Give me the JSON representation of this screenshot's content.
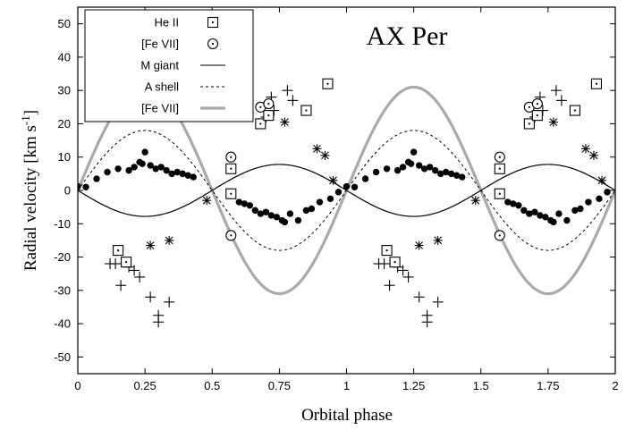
{
  "chart_data": {
    "type": "scatter",
    "title": "AX Per",
    "xlabel": "Orbital phase",
    "ylabel": "Radial velocity [km s",
    "ylabel_sup": "-1",
    "ylabel_close": "]",
    "xlim": [
      0,
      2
    ],
    "ylim": [
      -55,
      55
    ],
    "xticks": [
      0,
      0.25,
      0.5,
      0.75,
      1,
      1.25,
      1.5,
      1.75,
      2
    ],
    "xtick_labels": [
      "0",
      "0.25",
      "0.5",
      "0.75",
      "1",
      "1.25",
      "1.5",
      "1.75",
      "2"
    ],
    "yticks": [
      -50,
      -40,
      -30,
      -20,
      -10,
      0,
      10,
      20,
      30,
      40,
      50
    ],
    "ytick_labels": [
      "-50",
      "-40",
      "-30",
      "-20",
      "-10",
      "0",
      "10",
      "20",
      "30",
      "40",
      "50"
    ],
    "grid": false,
    "legend_position": "top-left",
    "legend": [
      {
        "label": "He II",
        "marker": "boxed-dot"
      },
      {
        "label": "[Fe VII]",
        "marker": "circled-dot"
      },
      {
        "label": "M giant",
        "marker": "solid-line"
      },
      {
        "label": "A shell",
        "marker": "dashed-line"
      },
      {
        "label": "[Fe VII]",
        "marker": "gray-line"
      }
    ],
    "curves": [
      {
        "name": "M giant",
        "style": "solid",
        "color": "#000000",
        "K": -7.8,
        "gamma": 0
      },
      {
        "name": "A shell",
        "style": "dashed",
        "color": "#000000",
        "K": 18,
        "gamma": 0
      },
      {
        "name": "[Fe VII]",
        "style": "thick",
        "color": "#aaaaaa",
        "K": 31,
        "gamma": 0
      }
    ],
    "series": [
      {
        "marker": "filled-circle",
        "points": [
          [
            0.0,
            1.2
          ],
          [
            0.03,
            1.0
          ],
          [
            0.07,
            3.5
          ],
          [
            0.11,
            5.5
          ],
          [
            0.15,
            6.5
          ],
          [
            0.19,
            6.0
          ],
          [
            0.21,
            7.0
          ],
          [
            0.23,
            8.5
          ],
          [
            0.24,
            8.0
          ],
          [
            0.25,
            11.5
          ],
          [
            0.27,
            7.5
          ],
          [
            0.29,
            6.5
          ],
          [
            0.31,
            7.0
          ],
          [
            0.33,
            6.0
          ],
          [
            0.35,
            5.0
          ],
          [
            0.37,
            5.5
          ],
          [
            0.39,
            5.0
          ],
          [
            0.41,
            4.5
          ],
          [
            0.43,
            4.0
          ],
          [
            0.57,
            -0.5
          ],
          [
            0.6,
            -3.5
          ],
          [
            0.62,
            -4.0
          ],
          [
            0.64,
            -4.5
          ],
          [
            0.66,
            -6.0
          ],
          [
            0.68,
            -7.0
          ],
          [
            0.7,
            -6.5
          ],
          [
            0.72,
            -7.5
          ],
          [
            0.74,
            -8.0
          ],
          [
            0.76,
            -9.0
          ],
          [
            0.77,
            -9.5
          ],
          [
            0.79,
            -7.0
          ],
          [
            0.82,
            -9.0
          ],
          [
            0.85,
            -6.0
          ],
          [
            0.87,
            -5.5
          ],
          [
            0.9,
            -3.5
          ],
          [
            0.94,
            -2.5
          ],
          [
            0.97,
            -0.5
          ],
          [
            1.0,
            1.2
          ],
          [
            1.03,
            1.0
          ],
          [
            1.07,
            3.5
          ],
          [
            1.11,
            5.5
          ],
          [
            1.15,
            6.5
          ],
          [
            1.19,
            6.0
          ],
          [
            1.21,
            7.0
          ],
          [
            1.23,
            8.5
          ],
          [
            1.24,
            8.0
          ],
          [
            1.25,
            11.5
          ],
          [
            1.27,
            7.5
          ],
          [
            1.29,
            6.5
          ],
          [
            1.31,
            7.0
          ],
          [
            1.33,
            6.0
          ],
          [
            1.35,
            5.0
          ],
          [
            1.37,
            5.5
          ],
          [
            1.39,
            5.0
          ],
          [
            1.41,
            4.5
          ],
          [
            1.43,
            4.0
          ],
          [
            1.57,
            -0.5
          ],
          [
            1.6,
            -3.5
          ],
          [
            1.62,
            -4.0
          ],
          [
            1.64,
            -4.5
          ],
          [
            1.66,
            -6.0
          ],
          [
            1.68,
            -7.0
          ],
          [
            1.7,
            -6.5
          ],
          [
            1.72,
            -7.5
          ],
          [
            1.74,
            -8.0
          ],
          [
            1.76,
            -9.0
          ],
          [
            1.77,
            -9.5
          ],
          [
            1.79,
            -7.0
          ],
          [
            1.82,
            -9.0
          ],
          [
            1.85,
            -6.0
          ],
          [
            1.87,
            -5.5
          ],
          [
            1.9,
            -3.5
          ],
          [
            1.94,
            -2.5
          ],
          [
            1.97,
            -0.5
          ]
        ]
      },
      {
        "marker": "plus",
        "points": [
          [
            0.12,
            -22.0
          ],
          [
            0.14,
            -22.0
          ],
          [
            0.16,
            -28.5
          ],
          [
            0.19,
            -23.0
          ],
          [
            0.21,
            -24.0
          ],
          [
            0.23,
            -26.0
          ],
          [
            0.27,
            -32.0
          ],
          [
            0.3,
            -37.5
          ],
          [
            0.3,
            -39.5
          ],
          [
            0.34,
            -33.5
          ],
          [
            0.7,
            22.0
          ],
          [
            0.72,
            28.0
          ],
          [
            0.73,
            24.0
          ],
          [
            0.78,
            30.0
          ],
          [
            0.8,
            27.0
          ],
          [
            1.12,
            -22.0
          ],
          [
            1.14,
            -22.0
          ],
          [
            1.16,
            -28.5
          ],
          [
            1.19,
            -23.0
          ],
          [
            1.21,
            -24.0
          ],
          [
            1.23,
            -26.0
          ],
          [
            1.27,
            -32.0
          ],
          [
            1.3,
            -37.5
          ],
          [
            1.3,
            -39.5
          ],
          [
            1.34,
            -33.5
          ],
          [
            1.7,
            22.0
          ],
          [
            1.72,
            28.0
          ],
          [
            1.73,
            24.0
          ],
          [
            1.78,
            30.0
          ],
          [
            1.8,
            27.0
          ]
        ]
      },
      {
        "marker": "asterisk",
        "points": [
          [
            0.27,
            -16.5
          ],
          [
            0.34,
            -15.0
          ],
          [
            0.48,
            -3.0
          ],
          [
            0.77,
            20.5
          ],
          [
            0.89,
            12.5
          ],
          [
            0.92,
            10.5
          ],
          [
            0.95,
            3.0
          ],
          [
            1.27,
            -16.5
          ],
          [
            1.34,
            -15.0
          ],
          [
            1.48,
            -3.0
          ],
          [
            1.77,
            20.5
          ],
          [
            1.89,
            12.5
          ],
          [
            1.92,
            10.5
          ],
          [
            1.95,
            3.0
          ]
        ]
      },
      {
        "marker": "boxed-dot",
        "points": [
          [
            0.15,
            -18.0
          ],
          [
            0.18,
            -21.5
          ],
          [
            0.57,
            -1.0
          ],
          [
            0.57,
            6.5
          ],
          [
            0.68,
            20.0
          ],
          [
            0.71,
            22.5
          ],
          [
            0.85,
            24.0
          ],
          [
            0.93,
            32.0
          ],
          [
            1.15,
            -18.0
          ],
          [
            1.18,
            -21.5
          ],
          [
            1.57,
            -1.0
          ],
          [
            1.57,
            6.5
          ],
          [
            1.68,
            20.0
          ],
          [
            1.71,
            22.5
          ],
          [
            1.85,
            24.0
          ],
          [
            1.93,
            32.0
          ]
        ]
      },
      {
        "marker": "circled-dot",
        "points": [
          [
            0.57,
            -13.5
          ],
          [
            0.57,
            10.0
          ],
          [
            0.68,
            25.0
          ],
          [
            0.71,
            26.0
          ],
          [
            1.57,
            -13.5
          ],
          [
            1.57,
            10.0
          ],
          [
            1.68,
            25.0
          ],
          [
            1.71,
            26.0
          ]
        ]
      }
    ]
  }
}
